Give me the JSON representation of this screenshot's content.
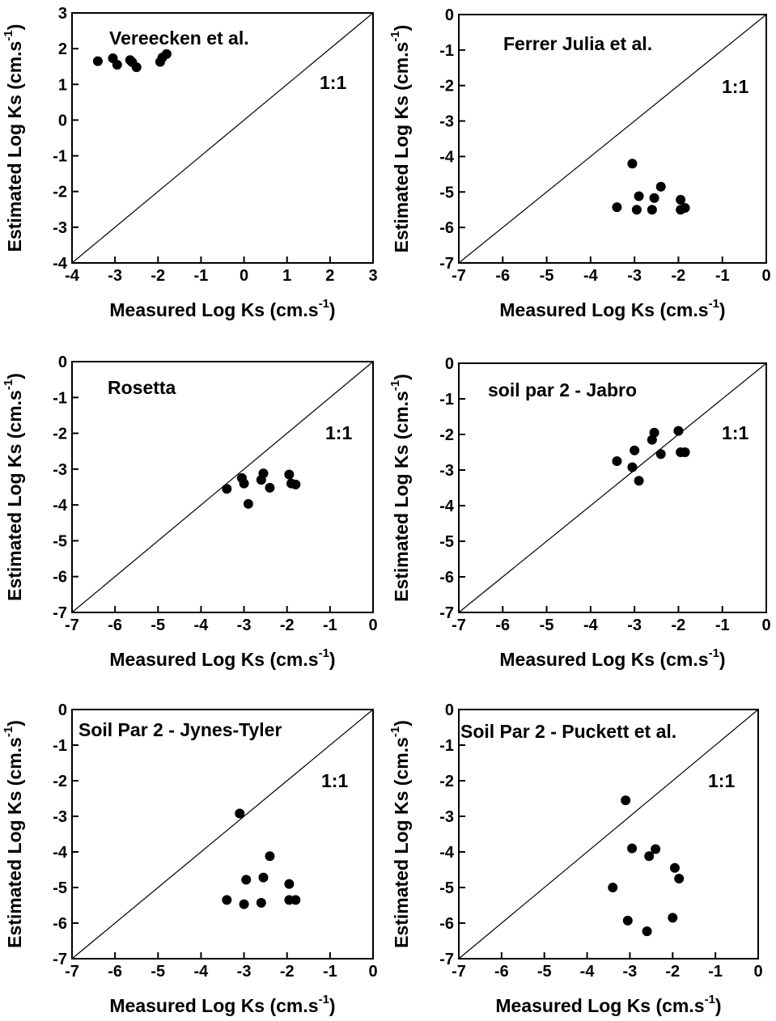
{
  "chart_data": [
    {
      "type": "scatter",
      "title": "Vereecken et al.",
      "annotation": "1:1",
      "xlabel": "Measured Log Ks (cm.s",
      "ylabel": "Estimated Log Ks (cm.s",
      "label_superscript": "-1",
      "label_close": ")",
      "xlim": [
        -4,
        3
      ],
      "ylim": [
        -4,
        3
      ],
      "xticks": [
        -4,
        -3,
        -2,
        -1,
        0,
        1,
        2,
        3
      ],
      "yticks": [
        -4,
        -3,
        -2,
        -1,
        0,
        1,
        2,
        3
      ],
      "identity_line": true,
      "grid": false,
      "series": [
        {
          "x": [
            -3.4,
            -3.05,
            -2.95,
            -2.65,
            -2.6,
            -2.5,
            -1.95,
            -1.9,
            -1.8
          ],
          "y": [
            1.65,
            1.73,
            1.55,
            1.68,
            1.62,
            1.48,
            1.63,
            1.75,
            1.85
          ]
        }
      ]
    },
    {
      "type": "scatter",
      "title": "Ferrer Julia et al.",
      "annotation": "1:1",
      "xlabel": "Measured Log Ks (cm.s",
      "ylabel": "Estimated Log Ks (cm.s",
      "label_superscript": "-1",
      "label_close": ")",
      "xlim": [
        -7,
        0
      ],
      "ylim": [
        -7,
        0
      ],
      "xticks": [
        -7,
        -6,
        -5,
        -4,
        -3,
        -2,
        -1,
        0
      ],
      "yticks": [
        -7,
        -6,
        -5,
        -4,
        -3,
        -2,
        -1,
        0
      ],
      "identity_line": true,
      "grid": false,
      "series": [
        {
          "x": [
            -3.4,
            -3.05,
            -2.95,
            -2.9,
            -2.6,
            -2.55,
            -2.4,
            -1.95,
            -1.95,
            -1.85
          ],
          "y": [
            -5.43,
            -4.2,
            -5.5,
            -5.12,
            -5.5,
            -5.17,
            -4.85,
            -5.22,
            -5.5,
            -5.45
          ]
        }
      ]
    },
    {
      "type": "scatter",
      "title": "Rosetta",
      "annotation": "1:1",
      "xlabel": "Measured Log Ks (cm.s",
      "ylabel": "Estimated Log Ks (cm.s",
      "label_superscript": "-1",
      "label_close": ")",
      "xlim": [
        -7,
        0
      ],
      "ylim": [
        -7,
        0
      ],
      "xticks": [
        -7,
        -6,
        -5,
        -4,
        -3,
        -2,
        -1,
        0
      ],
      "yticks": [
        -7,
        -6,
        -5,
        -4,
        -3,
        -2,
        -1,
        0
      ],
      "identity_line": true,
      "grid": false,
      "series": [
        {
          "x": [
            -3.4,
            -3.05,
            -3.0,
            -2.9,
            -2.6,
            -2.55,
            -2.4,
            -1.95,
            -1.9,
            -1.8
          ],
          "y": [
            -3.55,
            -3.25,
            -3.4,
            -3.97,
            -3.3,
            -3.12,
            -3.52,
            -3.15,
            -3.4,
            -3.43
          ]
        }
      ]
    },
    {
      "type": "scatter",
      "title": "soil par 2 - Jabro",
      "annotation": "1:1",
      "xlabel": "Measured Log Ks (cm.s",
      "ylabel": "Estimated Log Ks (cm.s",
      "label_superscript": "-1",
      "label_close": ")",
      "xlim": [
        -7,
        0
      ],
      "ylim": [
        -7,
        0
      ],
      "xticks": [
        -7,
        -6,
        -5,
        -4,
        -3,
        -2,
        -1,
        0
      ],
      "yticks": [
        -7,
        -6,
        -5,
        -4,
        -3,
        -2,
        -1,
        0
      ],
      "identity_line": true,
      "grid": false,
      "series": [
        {
          "x": [
            -3.4,
            -3.05,
            -3.0,
            -2.9,
            -2.6,
            -2.55,
            -2.4,
            -2.0,
            -1.95,
            -1.85
          ],
          "y": [
            -2.75,
            -2.92,
            -2.45,
            -3.3,
            -2.15,
            -1.95,
            -2.55,
            -1.9,
            -2.5,
            -2.5
          ]
        }
      ]
    },
    {
      "type": "scatter",
      "title": "Soil Par 2 - Jynes-Tyler",
      "annotation": "1:1",
      "xlabel": "Measured Log Ks (cm.s",
      "ylabel": "Estimated Log Ks (cm.s",
      "label_superscript": "-1",
      "label_close": ")",
      "xlim": [
        -7,
        0
      ],
      "ylim": [
        -7,
        0
      ],
      "xticks": [
        -7,
        -6,
        -5,
        -4,
        -3,
        -2,
        -1,
        0
      ],
      "yticks": [
        -7,
        -6,
        -5,
        -4,
        -3,
        -2,
        -1,
        0
      ],
      "identity_line": true,
      "grid": false,
      "series": [
        {
          "x": [
            -3.4,
            -3.1,
            -3.0,
            -2.95,
            -2.6,
            -2.55,
            -2.4,
            -1.95,
            -1.95,
            -1.8
          ],
          "y": [
            -5.35,
            -2.92,
            -5.47,
            -4.78,
            -5.43,
            -4.72,
            -4.12,
            -4.9,
            -5.35,
            -5.35
          ]
        }
      ]
    },
    {
      "type": "scatter",
      "title": "Soil Par 2 - Puckett et al.",
      "annotation": "1:1",
      "xlabel": "Measured Log Ks (cm.s",
      "ylabel": "Estimated Log Ks (cm.s",
      "label_superscript": "-1",
      "label_close": ")",
      "xlim": [
        -7,
        0
      ],
      "ylim": [
        -7,
        0
      ],
      "xticks": [
        -7,
        -6,
        -5,
        -4,
        -3,
        -2,
        -1,
        0
      ],
      "yticks": [
        -7,
        -6,
        -5,
        -4,
        -3,
        -2,
        -1,
        0
      ],
      "identity_line": true,
      "grid": false,
      "series": [
        {
          "x": [
            -3.4,
            -3.1,
            -3.05,
            -2.95,
            -2.6,
            -2.55,
            -2.4,
            -2.0,
            -1.95,
            -1.85
          ],
          "y": [
            -5.0,
            -2.55,
            -5.93,
            -3.9,
            -6.23,
            -4.12,
            -3.92,
            -5.85,
            -4.45,
            -4.75
          ]
        }
      ]
    }
  ]
}
